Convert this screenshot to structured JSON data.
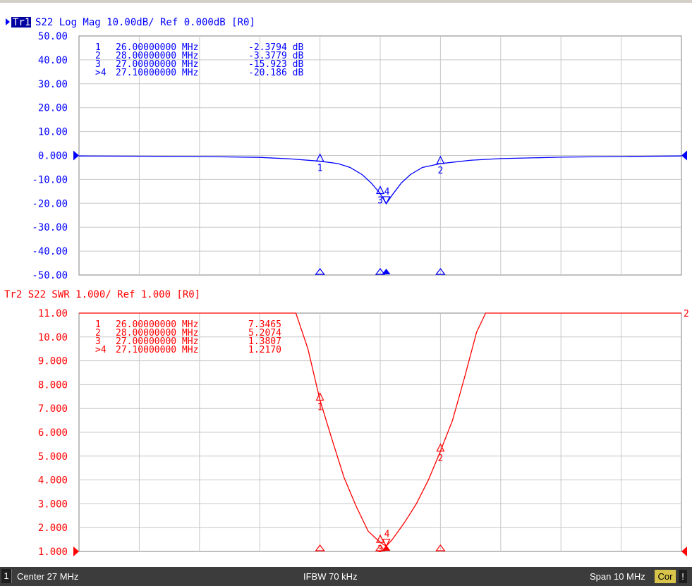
{
  "trace1": {
    "badge": "Tr1",
    "header": "S22 Log Mag 10.00dB/ Ref 0.000dB [R0]",
    "color": "#0000ff",
    "y_ticks": [
      "50.00",
      "40.00",
      "30.00",
      "20.00",
      "10.00",
      "0.000",
      "-10.00",
      "-20.00",
      "-30.00",
      "-40.00",
      "-50.00"
    ],
    "markers": [
      {
        "id": "1",
        "freq": "26.00000000 MHz",
        "value": "-2.3794 dB"
      },
      {
        "id": "2",
        "freq": "28.00000000 MHz",
        "value": "-3.3779 dB"
      },
      {
        "id": "3",
        "freq": "27.00000000 MHz",
        "value": "-15.923 dB"
      },
      {
        "id": ">4",
        "freq": "27.10000000 MHz",
        "value": "-20.186 dB"
      }
    ]
  },
  "trace2": {
    "header": "Tr2 S22 SWR 1.000/ Ref 1.000 [R0]",
    "color": "#ff0000",
    "y_ticks": [
      "11.00",
      "10.00",
      "9.000",
      "8.000",
      "7.000",
      "6.000",
      "5.000",
      "4.000",
      "3.000",
      "2.000",
      "1.000"
    ],
    "markers": [
      {
        "id": "1",
        "freq": "26.00000000 MHz",
        "value": "7.3465"
      },
      {
        "id": "2",
        "freq": "28.00000000 MHz",
        "value": "5.2074"
      },
      {
        "id": "3",
        "freq": "27.00000000 MHz",
        "value": "1.3807"
      },
      {
        "id": ">4",
        "freq": "27.10000000 MHz",
        "value": "1.2170"
      }
    ]
  },
  "status_bar": {
    "channel": "1",
    "center": "Center 27 MHz",
    "ifbw": "IFBW 70 kHz",
    "span": "Span 10 MHz",
    "cor": "Cor",
    "excl": "!"
  },
  "chart_data": [
    {
      "type": "line",
      "title": "S22 Log Mag 10.00dB/ Ref 0.000dB [R0]",
      "xlabel": "",
      "ylabel": "",
      "xlim": [
        22,
        32
      ],
      "ylim": [
        -50,
        50
      ],
      "grid": true,
      "x_unit": "MHz",
      "series": [
        {
          "color": "#0000ff",
          "x": [
            22,
            23,
            24,
            25,
            25.5,
            26,
            26.3,
            26.5,
            26.7,
            26.85,
            27,
            27.1,
            27.2,
            27.35,
            27.5,
            27.7,
            28,
            28.5,
            29,
            30,
            31,
            32
          ],
          "values": [
            -0.2,
            -0.3,
            -0.4,
            -0.8,
            -1.4,
            -2.38,
            -3.4,
            -5.0,
            -8.0,
            -11.5,
            -15.92,
            -20.19,
            -16.5,
            -11.5,
            -8.0,
            -5.0,
            -3.38,
            -2.0,
            -1.3,
            -0.7,
            -0.4,
            -0.2
          ]
        }
      ],
      "markers": [
        {
          "label": "1",
          "x": 26.0,
          "y": -2.3794
        },
        {
          "label": "2",
          "x": 28.0,
          "y": -3.3779
        },
        {
          "label": "3",
          "x": 27.0,
          "y": -15.923
        },
        {
          "label": "4",
          "x": 27.1,
          "y": -20.186
        }
      ]
    },
    {
      "type": "line",
      "title": "S22 SWR 1.000/ Ref 1.000 [R0]",
      "xlabel": "",
      "ylabel": "",
      "xlim": [
        22,
        32
      ],
      "ylim": [
        1,
        11
      ],
      "grid": true,
      "x_unit": "MHz",
      "series": [
        {
          "color": "#ff0000",
          "x": [
            25.6,
            25.8,
            26.0,
            26.2,
            26.4,
            26.6,
            26.8,
            27.0,
            27.1,
            27.2,
            27.4,
            27.6,
            27.8,
            28.0,
            28.2,
            28.4,
            28.6,
            28.75
          ],
          "values": [
            11,
            9.5,
            7.35,
            5.7,
            4.1,
            2.9,
            1.85,
            1.38,
            1.22,
            1.5,
            2.2,
            3.0,
            4.0,
            5.21,
            6.5,
            8.3,
            10.2,
            11
          ]
        }
      ],
      "markers": [
        {
          "label": "1",
          "x": 26.0,
          "y": 7.3465
        },
        {
          "label": "2",
          "x": 28.0,
          "y": 5.2074
        },
        {
          "label": "3",
          "x": 27.0,
          "y": 1.3807
        },
        {
          "label": "4",
          "x": 27.1,
          "y": 1.217
        }
      ]
    }
  ]
}
